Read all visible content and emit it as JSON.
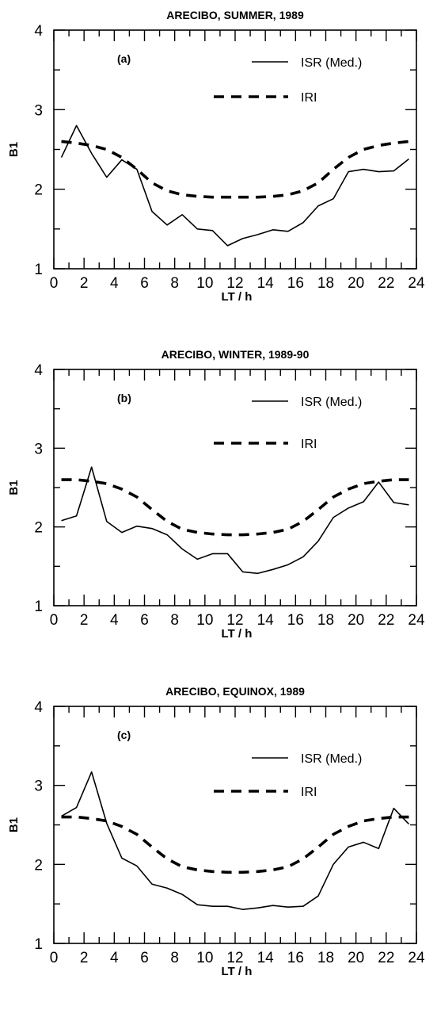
{
  "chart_data": [
    {
      "type": "line",
      "title": "ARECIBO, SUMMER, 1989",
      "panel_label": "(a)",
      "xlabel": "LT / h",
      "ylabel": "B1",
      "xlim": [
        0,
        24
      ],
      "ylim": [
        1,
        4
      ],
      "xticks": [
        0,
        2,
        4,
        6,
        8,
        10,
        12,
        14,
        16,
        18,
        20,
        22,
        24
      ],
      "yticks": [
        1,
        2,
        3,
        4
      ],
      "legend_position": "top-right",
      "series": [
        {
          "name": "ISR (Med.)",
          "style": "solid",
          "x": [
            0.5,
            1.5,
            2.5,
            3.5,
            4.5,
            5.5,
            6.5,
            7.5,
            8.5,
            9.5,
            10.5,
            11.5,
            12.5,
            13.5,
            14.5,
            15.5,
            16.5,
            17.5,
            18.5,
            19.5,
            20.5,
            21.5,
            22.5,
            23.5
          ],
          "y": [
            2.4,
            2.8,
            2.45,
            2.15,
            2.37,
            2.25,
            1.72,
            1.55,
            1.68,
            1.5,
            1.48,
            1.29,
            1.38,
            1.43,
            1.49,
            1.47,
            1.58,
            1.79,
            1.88,
            2.22,
            2.25,
            2.22,
            2.23,
            2.38
          ]
        },
        {
          "name": "IRI",
          "style": "dashed",
          "x": [
            0.5,
            1.5,
            2.5,
            3.5,
            4.5,
            5.5,
            6.5,
            7.5,
            8.5,
            9.5,
            10.5,
            11.5,
            12.5,
            13.5,
            14.5,
            15.5,
            16.5,
            17.5,
            18.5,
            19.5,
            20.5,
            21.5,
            22.5,
            23.5
          ],
          "y": [
            2.6,
            2.58,
            2.55,
            2.5,
            2.4,
            2.25,
            2.08,
            1.98,
            1.93,
            1.91,
            1.9,
            1.9,
            1.9,
            1.9,
            1.91,
            1.93,
            1.98,
            2.08,
            2.25,
            2.4,
            2.5,
            2.55,
            2.58,
            2.6
          ]
        }
      ]
    },
    {
      "type": "line",
      "title": "ARECIBO, WINTER, 1989-90",
      "panel_label": "(b)",
      "xlabel": "LT / h",
      "ylabel": "B1",
      "xlim": [
        0,
        24
      ],
      "ylim": [
        1,
        4
      ],
      "xticks": [
        0,
        2,
        4,
        6,
        8,
        10,
        12,
        14,
        16,
        18,
        20,
        22,
        24
      ],
      "yticks": [
        1,
        2,
        3,
        4
      ],
      "legend_position": "top-right",
      "series": [
        {
          "name": "ISR (Med.)",
          "style": "solid",
          "x": [
            0.5,
            1.5,
            2.5,
            3.5,
            4.5,
            5.5,
            6.5,
            7.5,
            8.5,
            9.5,
            10.5,
            11.5,
            12.5,
            13.5,
            14.5,
            15.5,
            16.5,
            17.5,
            18.5,
            19.5,
            20.5,
            21.5,
            22.5,
            23.5
          ],
          "y": [
            2.08,
            2.14,
            2.76,
            2.07,
            1.93,
            2.01,
            1.98,
            1.9,
            1.72,
            1.59,
            1.66,
            1.66,
            1.43,
            1.41,
            1.46,
            1.52,
            1.62,
            1.82,
            2.12,
            2.24,
            2.32,
            2.57,
            2.31,
            2.28
          ]
        },
        {
          "name": "IRI",
          "style": "dashed",
          "x": [
            0.5,
            1.5,
            2.5,
            3.5,
            4.5,
            5.5,
            6.5,
            7.5,
            8.5,
            9.5,
            10.5,
            11.5,
            12.5,
            13.5,
            14.5,
            15.5,
            16.5,
            17.5,
            18.5,
            19.5,
            20.5,
            21.5,
            22.5,
            23.5
          ],
          "y": [
            2.6,
            2.6,
            2.58,
            2.55,
            2.48,
            2.38,
            2.22,
            2.07,
            1.97,
            1.93,
            1.91,
            1.9,
            1.9,
            1.91,
            1.93,
            1.97,
            2.07,
            2.22,
            2.38,
            2.48,
            2.55,
            2.58,
            2.6,
            2.6
          ]
        }
      ]
    },
    {
      "type": "line",
      "title": "ARECIBO, EQUINOX, 1989",
      "panel_label": "(c)",
      "xlabel": "LT / h",
      "ylabel": "B1",
      "xlim": [
        0,
        24
      ],
      "ylim": [
        1,
        4
      ],
      "xticks": [
        0,
        2,
        4,
        6,
        8,
        10,
        12,
        14,
        16,
        18,
        20,
        22,
        24
      ],
      "yticks": [
        1,
        2,
        3,
        4
      ],
      "legend_position": "top-right",
      "series": [
        {
          "name": "ISR (Med.)",
          "style": "solid",
          "x": [
            0.5,
            1.5,
            2.5,
            3.5,
            4.5,
            5.5,
            6.5,
            7.5,
            8.5,
            9.5,
            10.5,
            11.5,
            12.5,
            13.5,
            14.5,
            15.5,
            16.5,
            17.5,
            18.5,
            19.5,
            20.5,
            21.5,
            22.5,
            23.5
          ],
          "y": [
            2.61,
            2.72,
            3.17,
            2.52,
            2.08,
            1.98,
            1.75,
            1.7,
            1.62,
            1.49,
            1.47,
            1.47,
            1.43,
            1.45,
            1.48,
            1.46,
            1.47,
            1.6,
            2.0,
            2.22,
            2.28,
            2.2,
            2.71,
            2.51
          ]
        },
        {
          "name": "IRI",
          "style": "dashed",
          "x": [
            0.5,
            1.5,
            2.5,
            3.5,
            4.5,
            5.5,
            6.5,
            7.5,
            8.5,
            9.5,
            10.5,
            11.5,
            12.5,
            13.5,
            14.5,
            15.5,
            16.5,
            17.5,
            18.5,
            19.5,
            20.5,
            21.5,
            22.5,
            23.5
          ],
          "y": [
            2.6,
            2.6,
            2.58,
            2.55,
            2.48,
            2.38,
            2.22,
            2.07,
            1.97,
            1.93,
            1.91,
            1.9,
            1.9,
            1.91,
            1.93,
            1.97,
            2.07,
            2.22,
            2.38,
            2.48,
            2.55,
            2.58,
            2.6,
            2.6
          ]
        }
      ]
    }
  ]
}
